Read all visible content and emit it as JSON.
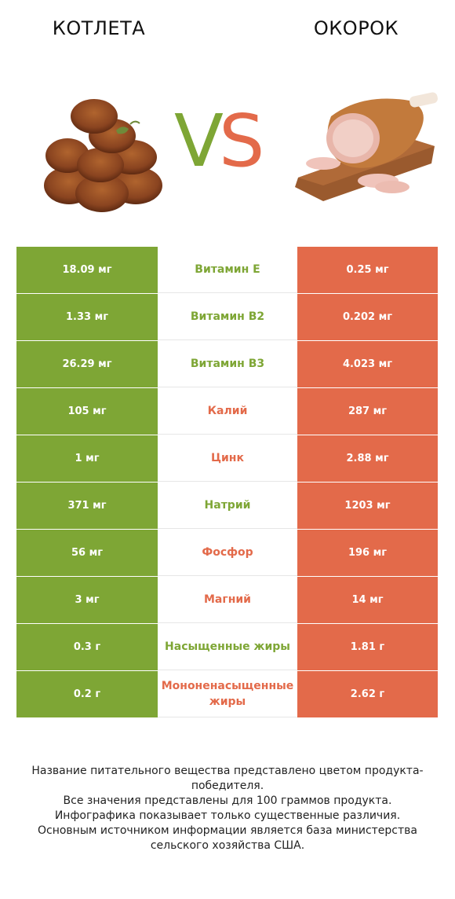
{
  "header": {
    "left_title": "КОТЛЕТА",
    "right_title": "ОКОРОК",
    "vs_v": "V",
    "vs_s": "S"
  },
  "colors": {
    "left": "#7ea635",
    "right": "#e36a4a"
  },
  "rows": [
    {
      "left": "18.09 мг",
      "label": "Витамин E",
      "right": "0.25 мг",
      "winner": "left"
    },
    {
      "left": "1.33 мг",
      "label": "Витамин B2",
      "right": "0.202 мг",
      "winner": "left"
    },
    {
      "left": "26.29 мг",
      "label": "Витамин B3",
      "right": "4.023 мг",
      "winner": "left"
    },
    {
      "left": "105 мг",
      "label": "Калий",
      "right": "287 мг",
      "winner": "right"
    },
    {
      "left": "1 мг",
      "label": "Цинк",
      "right": "2.88 мг",
      "winner": "right"
    },
    {
      "left": "371 мг",
      "label": "Натрий",
      "right": "1203 мг",
      "winner": "left"
    },
    {
      "left": "56 мг",
      "label": "Фосфор",
      "right": "196 мг",
      "winner": "right"
    },
    {
      "left": "3 мг",
      "label": "Магний",
      "right": "14 мг",
      "winner": "right"
    },
    {
      "left": "0.3 г",
      "label": "Насыщенные жиры",
      "right": "1.81 г",
      "winner": "left"
    },
    {
      "left": "0.2 г",
      "label": "Мононенасыщенные жиры",
      "right": "2.62 г",
      "winner": "right"
    }
  ],
  "footer": {
    "line1": "Название питательного вещества представлено цветом продукта-победителя.",
    "line2": "Все значения представлены для 100 граммов продукта.",
    "line3": "Инфографика показывает только существенные различия.",
    "line4": "Основным источником информации является база министерства сельского хозяйства США."
  }
}
